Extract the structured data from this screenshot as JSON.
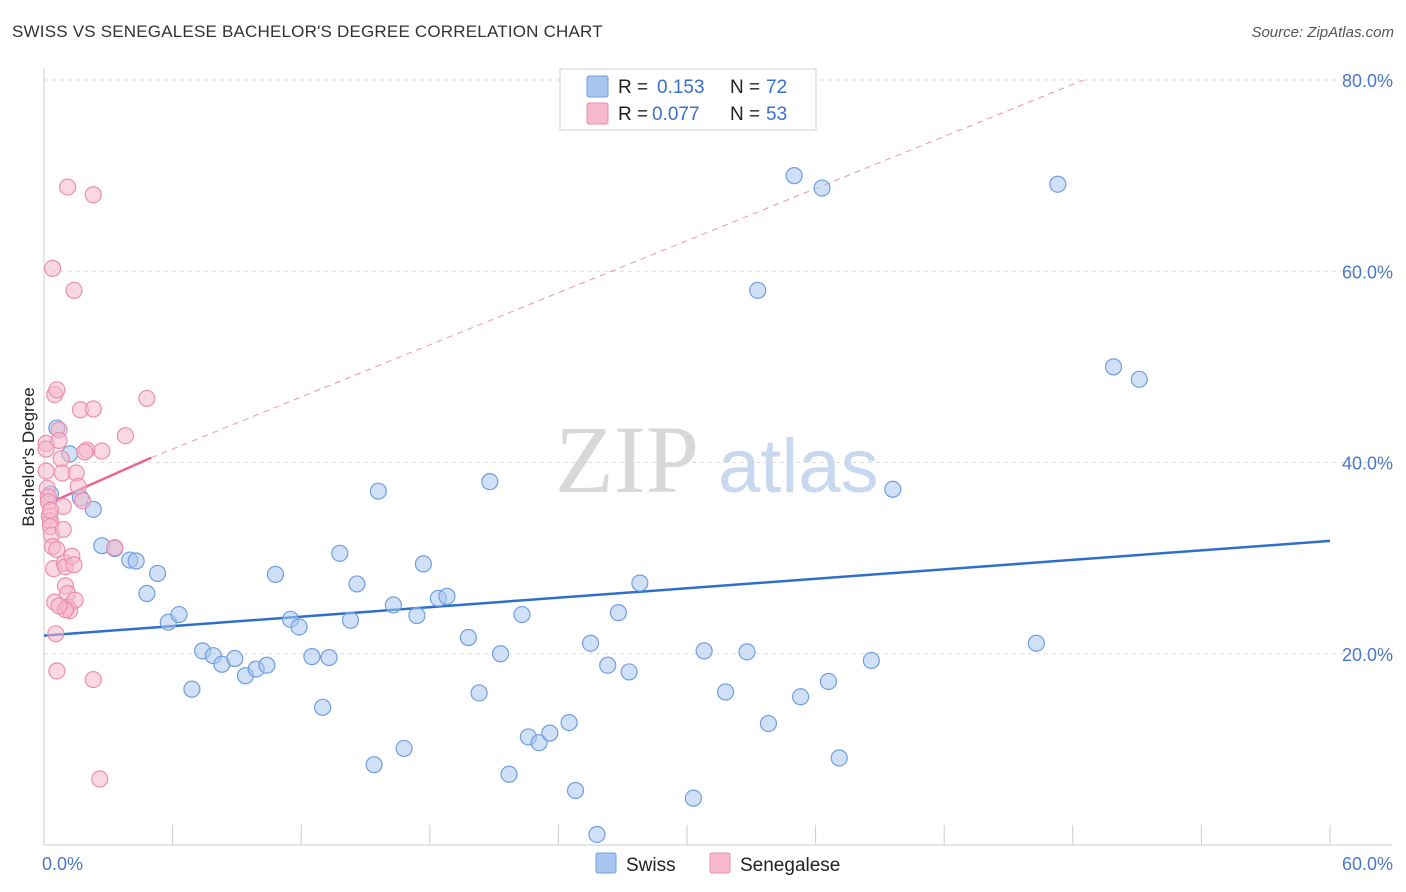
{
  "title": "SWISS VS SENEGALESE BACHELOR'S DEGREE CORRELATION CHART",
  "source": "Source: ZipAtlas.com",
  "watermark": {
    "zip": "ZIP",
    "atlas": "atlas"
  },
  "colors": {
    "swiss_fill": "#a9c6f0",
    "swiss_stroke": "#6f9fe0",
    "swiss_line": "#2f6fcc",
    "senegalese_fill": "#f6b8cb",
    "senegalese_stroke": "#ec8fae",
    "senegalese_line": "#e8668f",
    "grid": "#dddddd",
    "tick_text": "#4a78c8"
  },
  "legend": {
    "swiss": {
      "r_label": "R = ",
      "r_value": "0.153",
      "n_label": "N = ",
      "n_value": "72"
    },
    "senegalese": {
      "r_label": "R = ",
      "r_value": "0.077",
      "n_label": "N = ",
      "n_value": "53"
    }
  },
  "chart_data": {
    "type": "scatter",
    "title": "SWISS VS SENEGALESE BACHELOR'S DEGREE CORRELATION CHART",
    "xlabel": "",
    "ylabel": "Bachelor's Degree",
    "xlim": [
      0,
      60
    ],
    "ylim": [
      0,
      80
    ],
    "x_tick_labels": [
      "0.0%",
      "60.0%"
    ],
    "y_ticks": [
      20,
      40,
      60,
      80
    ],
    "y_tick_labels": [
      "20.0%",
      "40.0%",
      "60.0%",
      "80.0%"
    ],
    "legend_position": "top-center",
    "series": [
      {
        "name": "Swiss",
        "points": [
          [
            0.3,
            36.7
          ],
          [
            0.6,
            43.6
          ],
          [
            1.2,
            40.9
          ],
          [
            1.7,
            36.3
          ],
          [
            2.3,
            35.1
          ],
          [
            2.7,
            31.3
          ],
          [
            3.3,
            31.0
          ],
          [
            4.0,
            29.8
          ],
          [
            4.3,
            29.7
          ],
          [
            4.8,
            26.3
          ],
          [
            5.3,
            28.4
          ],
          [
            5.8,
            23.3
          ],
          [
            6.3,
            24.1
          ],
          [
            6.9,
            16.3
          ],
          [
            7.4,
            20.3
          ],
          [
            7.9,
            19.8
          ],
          [
            8.3,
            18.9
          ],
          [
            8.9,
            19.5
          ],
          [
            9.4,
            17.7
          ],
          [
            9.9,
            18.4
          ],
          [
            10.4,
            18.8
          ],
          [
            10.8,
            28.3
          ],
          [
            11.5,
            23.6
          ],
          [
            11.9,
            22.8
          ],
          [
            12.5,
            19.7
          ],
          [
            13.0,
            14.4
          ],
          [
            13.3,
            19.6
          ],
          [
            13.8,
            30.5
          ],
          [
            14.3,
            23.5
          ],
          [
            14.6,
            27.3
          ],
          [
            15.4,
            8.4
          ],
          [
            15.6,
            37.0
          ],
          [
            16.3,
            25.1
          ],
          [
            16.8,
            10.1
          ],
          [
            17.4,
            24.0
          ],
          [
            17.7,
            29.4
          ],
          [
            18.4,
            25.8
          ],
          [
            18.8,
            26.0
          ],
          [
            19.8,
            21.7
          ],
          [
            20.3,
            15.9
          ],
          [
            20.8,
            38.0
          ],
          [
            21.3,
            20.0
          ],
          [
            21.7,
            7.4
          ],
          [
            22.3,
            24.1
          ],
          [
            22.6,
            11.3
          ],
          [
            23.1,
            10.7
          ],
          [
            23.6,
            11.7
          ],
          [
            24.5,
            12.8
          ],
          [
            24.8,
            5.7
          ],
          [
            25.5,
            21.1
          ],
          [
            25.8,
            1.1
          ],
          [
            26.3,
            18.8
          ],
          [
            26.8,
            24.3
          ],
          [
            27.3,
            18.1
          ],
          [
            27.8,
            27.4
          ],
          [
            30.3,
            4.9
          ],
          [
            30.8,
            20.3
          ],
          [
            31.8,
            16.0
          ],
          [
            32.8,
            20.2
          ],
          [
            33.3,
            58.0
          ],
          [
            33.8,
            12.7
          ],
          [
            35.0,
            70.0
          ],
          [
            35.3,
            15.5
          ],
          [
            36.3,
            68.7
          ],
          [
            36.6,
            17.1
          ],
          [
            37.1,
            9.1
          ],
          [
            38.6,
            19.3
          ],
          [
            39.6,
            37.2
          ],
          [
            46.3,
            21.1
          ],
          [
            47.3,
            69.1
          ],
          [
            49.9,
            50.0
          ],
          [
            51.1,
            48.7
          ]
        ]
      },
      {
        "name": "Senegalese",
        "points": [
          [
            0.1,
            42.0
          ],
          [
            0.1,
            41.4
          ],
          [
            0.1,
            39.1
          ],
          [
            0.15,
            37.3
          ],
          [
            0.2,
            36.4
          ],
          [
            0.2,
            35.9
          ],
          [
            0.25,
            34.4
          ],
          [
            0.3,
            33.9
          ],
          [
            0.3,
            33.3
          ],
          [
            0.35,
            32.4
          ],
          [
            0.4,
            31.2
          ],
          [
            0.45,
            28.9
          ],
          [
            0.5,
            25.4
          ],
          [
            0.55,
            22.1
          ],
          [
            0.6,
            18.2
          ],
          [
            0.4,
            60.3
          ],
          [
            0.5,
            47.1
          ],
          [
            0.6,
            47.6
          ],
          [
            0.7,
            43.4
          ],
          [
            0.7,
            42.3
          ],
          [
            0.8,
            40.4
          ],
          [
            0.85,
            38.9
          ],
          [
            0.9,
            35.4
          ],
          [
            0.95,
            29.5
          ],
          [
            1.0,
            29.1
          ],
          [
            1.0,
            27.1
          ],
          [
            1.1,
            26.3
          ],
          [
            1.1,
            24.9
          ],
          [
            1.2,
            24.5
          ],
          [
            1.3,
            30.2
          ],
          [
            1.4,
            29.3
          ],
          [
            1.45,
            25.6
          ],
          [
            1.0,
            24.6
          ],
          [
            0.7,
            25.0
          ],
          [
            1.1,
            68.8
          ],
          [
            1.4,
            58.0
          ],
          [
            1.5,
            38.9
          ],
          [
            1.6,
            37.5
          ],
          [
            1.7,
            45.5
          ],
          [
            2.0,
            41.3
          ],
          [
            2.3,
            68.0
          ],
          [
            2.3,
            45.6
          ],
          [
            2.3,
            17.3
          ],
          [
            2.6,
            6.9
          ],
          [
            2.7,
            41.2
          ],
          [
            3.3,
            31.1
          ],
          [
            3.8,
            42.8
          ],
          [
            4.8,
            46.7
          ],
          [
            1.9,
            41.1
          ],
          [
            0.3,
            35.0
          ],
          [
            0.9,
            33.0
          ],
          [
            1.8,
            36.0
          ],
          [
            0.6,
            30.9
          ]
        ]
      }
    ],
    "trend_lines": [
      {
        "series": "Swiss",
        "x": [
          0,
          60
        ],
        "y": [
          21.9,
          31.8
        ],
        "style": "solid"
      },
      {
        "series": "Senegalese",
        "x": [
          0,
          5.0
        ],
        "y": [
          35.5,
          40.5
        ],
        "style": "solid"
      },
      {
        "series": "Senegalese",
        "x": [
          5.0,
          48.5
        ],
        "y": [
          40.5,
          80.0
        ],
        "style": "dashed"
      }
    ],
    "bottom_legend": [
      "Swiss",
      "Senegalese"
    ]
  }
}
